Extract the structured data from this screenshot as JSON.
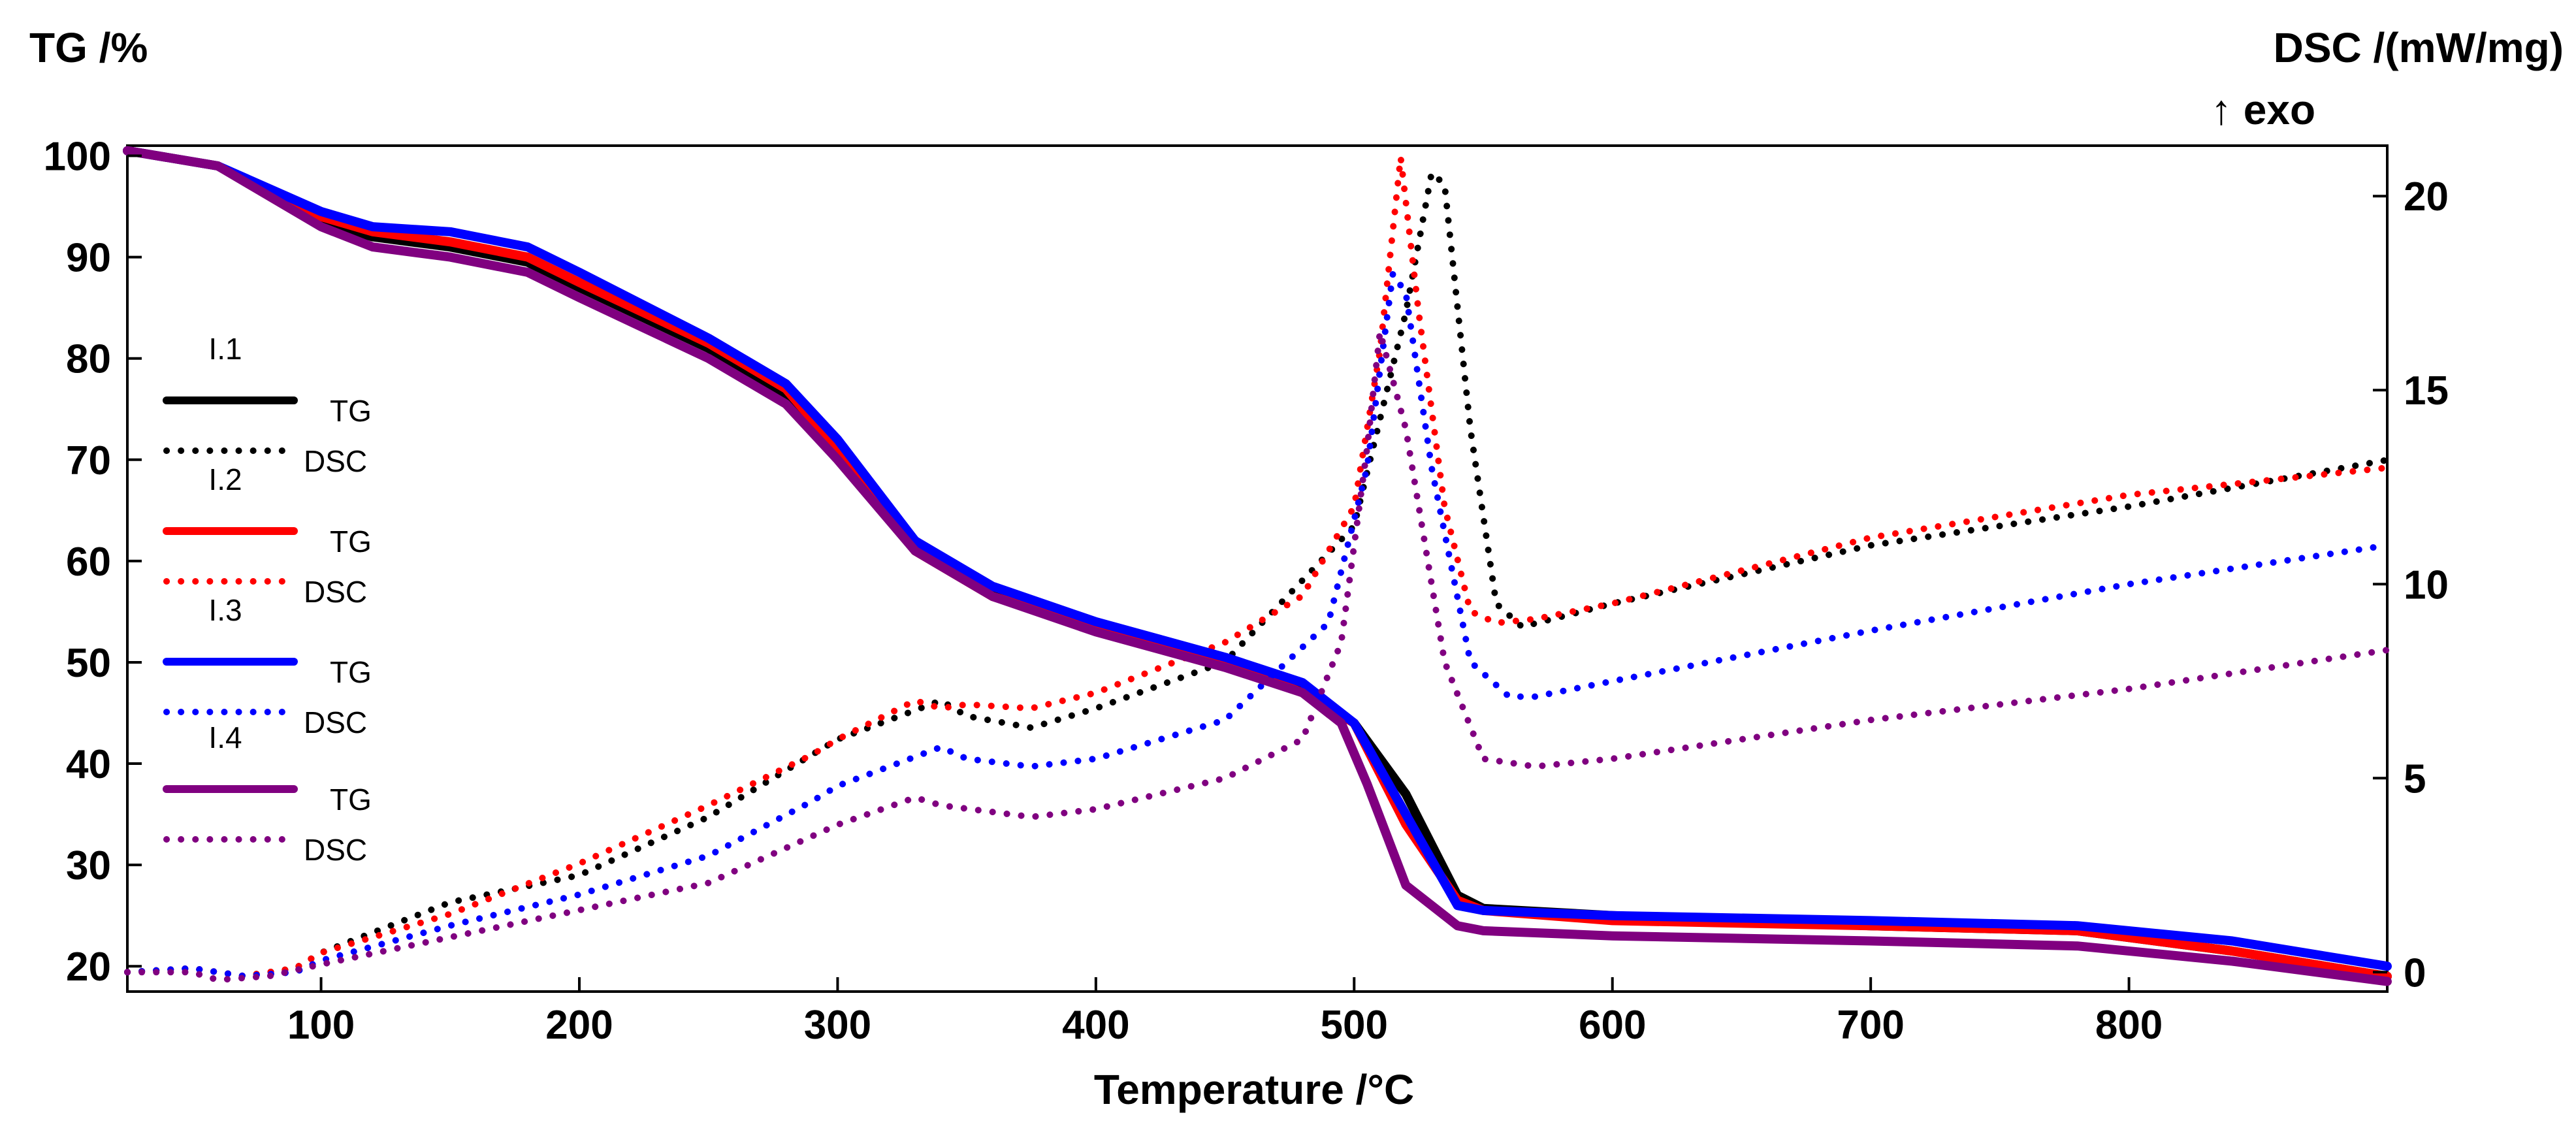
{
  "chart_data": {
    "type": "line",
    "title": "",
    "xlabel": "Temperature /°C",
    "ylabel_left": "TG /%",
    "ylabel_right": "DSC /(mW/mg)",
    "ylabel_right_note": "↑ exo",
    "xlim": [
      25,
      900
    ],
    "ylim_left": [
      17.5,
      101
    ],
    "ylim_right": [
      -0.5,
      21.3
    ],
    "x_ticks": [
      100,
      200,
      300,
      400,
      500,
      600,
      700,
      800
    ],
    "y_left_ticks": [
      20,
      30,
      40,
      50,
      60,
      70,
      80,
      90,
      100
    ],
    "y_right_ticks": [
      0,
      5,
      10,
      15,
      20
    ],
    "colors": {
      "I.1": "#000000",
      "I.2": "#ff0000",
      "I.3": "#0000ff",
      "I.4": "#800080"
    },
    "legend": [
      {
        "group": "I.1",
        "entries": [
          "TG",
          "DSC"
        ]
      },
      {
        "group": "I.2",
        "entries": [
          "TG",
          "DSC"
        ]
      },
      {
        "group": "I.3",
        "entries": [
          "TG",
          "DSC"
        ]
      },
      {
        "group": "I.4",
        "entries": [
          "TG",
          "DSC"
        ]
      }
    ],
    "series": [
      {
        "name": "I.1 TG",
        "sample": "I.1",
        "kind": "TG",
        "axis": "left",
        "style": "solid",
        "x": [
          25,
          60,
          100,
          120,
          150,
          180,
          200,
          250,
          280,
          300,
          330,
          360,
          400,
          450,
          480,
          500,
          520,
          540,
          550,
          600,
          700,
          780,
          840,
          900
        ],
        "y": [
          100.5,
          99,
          93.5,
          92,
          91,
          89.5,
          87,
          81,
          76.5,
          71,
          62,
          57,
          53.5,
          50,
          47.5,
          44,
          37,
          27,
          25.7,
          25,
          24,
          23.5,
          21.5,
          19
        ]
      },
      {
        "name": "I.1 DSC",
        "sample": "I.1",
        "kind": "DSC",
        "axis": "right",
        "style": "dotted",
        "x": [
          25,
          50,
          70,
          90,
          100,
          150,
          200,
          250,
          290,
          300,
          340,
          350,
          375,
          400,
          450,
          500,
          520,
          530,
          535,
          545,
          555,
          565,
          600,
          700,
          800,
          900
        ],
        "y": [
          0,
          0.1,
          -0.1,
          0.1,
          0.5,
          1.8,
          2.5,
          4,
          5.6,
          6,
          7,
          6.6,
          6.3,
          6.8,
          8,
          11.5,
          17,
          20.6,
          20.3,
          14,
          9.5,
          8.9,
          9.5,
          11,
          12,
          13.2
        ]
      },
      {
        "name": "I.2 TG",
        "sample": "I.2",
        "kind": "TG",
        "axis": "left",
        "style": "solid",
        "x": [
          25,
          60,
          100,
          120,
          150,
          180,
          200,
          250,
          280,
          300,
          330,
          360,
          400,
          450,
          480,
          500,
          520,
          540,
          550,
          600,
          700,
          780,
          840,
          900
        ],
        "y": [
          100.5,
          99,
          94,
          92.5,
          91.5,
          90,
          87.5,
          81.5,
          77,
          71,
          61,
          56.5,
          53.5,
          50,
          47,
          44,
          34,
          26.5,
          25.5,
          24.5,
          24,
          23.5,
          21.5,
          19
        ]
      },
      {
        "name": "I.2 DSC",
        "sample": "I.2",
        "kind": "DSC",
        "axis": "right",
        "style": "dotted",
        "x": [
          25,
          50,
          70,
          90,
          100,
          150,
          200,
          250,
          290,
          300,
          330,
          340,
          350,
          375,
          400,
          450,
          480,
          500,
          510,
          518,
          525,
          535,
          545,
          555,
          570,
          600,
          700,
          800,
          900
        ],
        "y": [
          0,
          0.1,
          -0.1,
          0.1,
          0.5,
          1.5,
          2.8,
          4.3,
          5.6,
          6,
          7,
          6.8,
          6.9,
          6.8,
          7.2,
          8.5,
          9.7,
          12,
          16,
          21,
          17,
          12,
          9.3,
          9,
          9.1,
          9.5,
          11.2,
          12.3,
          13
        ]
      },
      {
        "name": "I.3 TG",
        "sample": "I.3",
        "kind": "TG",
        "axis": "left",
        "style": "solid",
        "x": [
          25,
          60,
          100,
          120,
          150,
          180,
          200,
          250,
          280,
          300,
          330,
          360,
          400,
          450,
          480,
          500,
          520,
          540,
          550,
          600,
          700,
          780,
          840,
          900
        ],
        "y": [
          100.5,
          99,
          94.5,
          93,
          92.5,
          91,
          88.5,
          82,
          77.5,
          72,
          62,
          57.5,
          54,
          50.5,
          48,
          44,
          35,
          26,
          25.5,
          25,
          24.5,
          24,
          22.5,
          20
        ]
      },
      {
        "name": "I.3 DSC",
        "sample": "I.3",
        "kind": "DSC",
        "axis": "right",
        "style": "dotted",
        "x": [
          25,
          50,
          70,
          90,
          100,
          150,
          200,
          250,
          290,
          300,
          340,
          350,
          375,
          400,
          450,
          490,
          505,
          515,
          520,
          530,
          545,
          560,
          570,
          600,
          700,
          800,
          900
        ],
        "y": [
          0,
          0.1,
          -0.1,
          0,
          0.3,
          1.2,
          2,
          3,
          4.4,
          4.8,
          5.8,
          5.5,
          5.3,
          5.5,
          6.5,
          9,
          13,
          18,
          17.5,
          13,
          8,
          7.1,
          7.1,
          7.5,
          8.8,
          10,
          11
        ]
      },
      {
        "name": "I.4 TG",
        "sample": "I.4",
        "kind": "TG",
        "axis": "left",
        "style": "solid",
        "x": [
          25,
          60,
          100,
          120,
          150,
          180,
          200,
          250,
          280,
          300,
          330,
          360,
          400,
          450,
          480,
          495,
          505,
          520,
          540,
          550,
          600,
          700,
          780,
          840,
          900
        ],
        "y": [
          100.5,
          99,
          93,
          91,
          90,
          88.5,
          86,
          80,
          75.5,
          70,
          61,
          56.5,
          53,
          49.5,
          47,
          44,
          38,
          28,
          24,
          23.5,
          23,
          22.5,
          22,
          20.5,
          18.5
        ]
      },
      {
        "name": "I.4 DSC",
        "sample": "I.4",
        "kind": "DSC",
        "axis": "right",
        "style": "dotted",
        "x": [
          25,
          50,
          60,
          80,
          100,
          150,
          200,
          250,
          290,
          300,
          330,
          340,
          375,
          400,
          450,
          480,
          495,
          505,
          510,
          520,
          535,
          550,
          570,
          600,
          700,
          800,
          900
        ],
        "y": [
          0,
          0,
          -0.2,
          -0.1,
          0.2,
          0.9,
          1.6,
          2.3,
          3.5,
          3.8,
          4.5,
          4.3,
          4,
          4.2,
          5,
          6,
          8.5,
          13.5,
          16.5,
          14,
          8,
          5.5,
          5.3,
          5.5,
          6.5,
          7.3,
          8.3
        ]
      }
    ]
  }
}
